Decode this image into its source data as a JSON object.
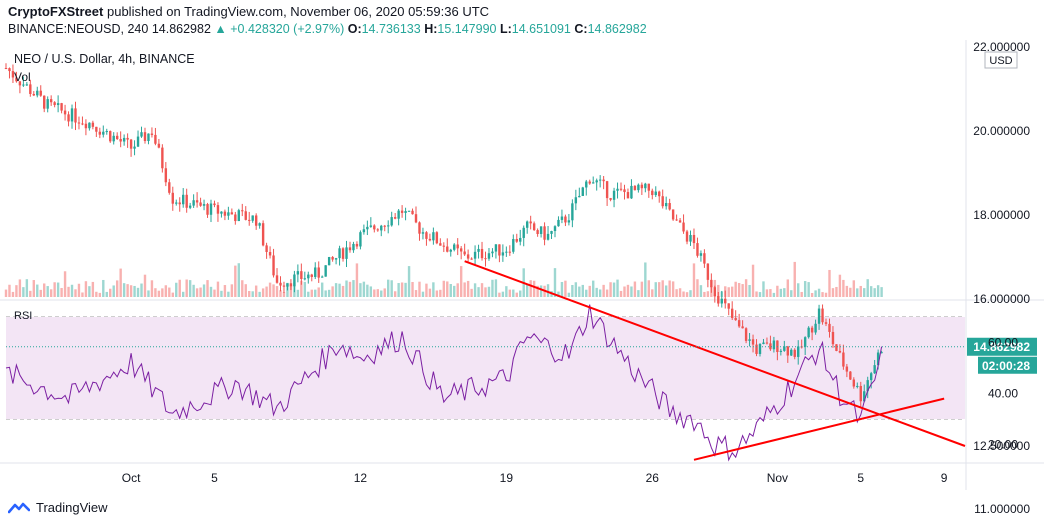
{
  "header": {
    "publisher": "CryptoFXStreet",
    "published_text": "published on TradingView.com, November 06, 2020 05:59:36 UTC"
  },
  "quote": {
    "symbol": "BINANCE:NEOUSD, 240",
    "last": "14.862982",
    "change": "+0.428320 (+2.97%)",
    "o_label": "O:",
    "o": "14.736133",
    "h_label": "H:",
    "h": "15.147990",
    "l_label": "L:",
    "l": "14.651091",
    "c_label": "C:",
    "c": "14.862982"
  },
  "legend": {
    "symbol_title": "NEO / U.S. Dollar, 4h, BINANCE",
    "vol_label": "Vol",
    "rsi_label": "RSI"
  },
  "price_axis": {
    "currency": "USD",
    "ticks": [
      "22.000000",
      "20.000000",
      "18.000000",
      "16.000000",
      "12.500000",
      "11.000000"
    ],
    "last_price_label": "14.862982",
    "countdown_label": "02:00:28"
  },
  "rsi_axis": {
    "ticks": [
      "60.00",
      "40.00",
      "20.00"
    ]
  },
  "time_axis": {
    "ticks": [
      "Oct",
      "5",
      "12",
      "19",
      "26",
      "Nov",
      "5",
      "9"
    ]
  },
  "footer": {
    "brand": "TradingView"
  },
  "colors": {
    "up": "#26a69a",
    "down": "#ef5350",
    "trendline": "#ff0000",
    "rsi_line": "#7b1fa2",
    "rsi_band": "#f3e5f5",
    "last_price_bg": "#26a69a"
  },
  "chart_data": {
    "type": "candlestick",
    "title": "NEO / U.S. Dollar, 4h, BINANCE",
    "x_start": "2020-09-25",
    "x_end": "2020-11-10",
    "y_range": [
      10.8,
      22.2
    ],
    "close_path": [
      [
        "2020-09-25",
        21.5
      ],
      [
        "2020-09-27",
        20.6
      ],
      [
        "2020-09-29",
        20.2
      ],
      [
        "2020-10-01",
        19.6
      ],
      [
        "2020-10-02",
        20.0
      ],
      [
        "2020-10-03",
        18.4
      ],
      [
        "2020-10-05",
        18.1
      ],
      [
        "2020-10-07",
        17.9
      ],
      [
        "2020-10-08",
        16.4
      ],
      [
        "2020-10-10",
        16.6
      ],
      [
        "2020-10-12",
        17.5
      ],
      [
        "2020-10-13",
        17.8
      ],
      [
        "2020-10-14",
        18.1
      ],
      [
        "2020-10-15",
        17.6
      ],
      [
        "2020-10-17",
        17.0
      ],
      [
        "2020-10-19",
        17.2
      ],
      [
        "2020-10-20",
        17.7
      ],
      [
        "2020-10-21",
        17.5
      ],
      [
        "2020-10-22",
        18.0
      ],
      [
        "2020-10-23",
        18.9
      ],
      [
        "2020-10-24",
        18.5
      ],
      [
        "2020-10-26",
        18.6
      ],
      [
        "2020-10-27",
        17.9
      ],
      [
        "2020-10-28",
        17.3
      ],
      [
        "2020-10-29",
        16.2
      ],
      [
        "2020-10-30",
        15.4
      ],
      [
        "2020-10-31",
        14.8
      ],
      [
        "2020-11-01",
        14.9
      ],
      [
        "2020-11-02",
        14.7
      ],
      [
        "2020-11-03",
        15.7
      ],
      [
        "2020-11-04",
        14.6
      ],
      [
        "2020-11-05",
        13.7
      ],
      [
        "2020-11-06",
        14.86
      ]
    ],
    "rsi_path": [
      [
        "2020-09-25",
        48
      ],
      [
        "2020-09-28",
        38
      ],
      [
        "2020-10-01",
        52
      ],
      [
        "2020-10-03",
        32
      ],
      [
        "2020-10-06",
        44
      ],
      [
        "2020-10-08",
        34
      ],
      [
        "2020-10-11",
        60
      ],
      [
        "2020-10-12",
        54
      ],
      [
        "2020-10-14",
        62
      ],
      [
        "2020-10-16",
        38
      ],
      [
        "2020-10-19",
        46
      ],
      [
        "2020-10-20",
        62
      ],
      [
        "2020-10-22",
        55
      ],
      [
        "2020-10-23",
        72
      ],
      [
        "2020-10-25",
        50
      ],
      [
        "2020-10-27",
        32
      ],
      [
        "2020-10-28",
        30
      ],
      [
        "2020-10-29",
        20
      ],
      [
        "2020-10-30",
        18
      ],
      [
        "2020-10-31",
        26
      ],
      [
        "2020-11-01",
        36
      ],
      [
        "2020-11-03",
        58
      ],
      [
        "2020-11-04",
        40
      ],
      [
        "2020-11-05",
        29
      ],
      [
        "2020-11-06",
        54
      ]
    ],
    "rsi_band": [
      30,
      70
    ],
    "trendlines": [
      {
        "panel": "price",
        "from": [
          "2020-10-17",
          16.9
        ],
        "to": [
          "2020-11-10",
          12.5
        ]
      },
      {
        "panel": "rsi",
        "from": [
          "2020-10-28",
          14
        ],
        "to": [
          "2020-11-09",
          38
        ]
      }
    ]
  }
}
